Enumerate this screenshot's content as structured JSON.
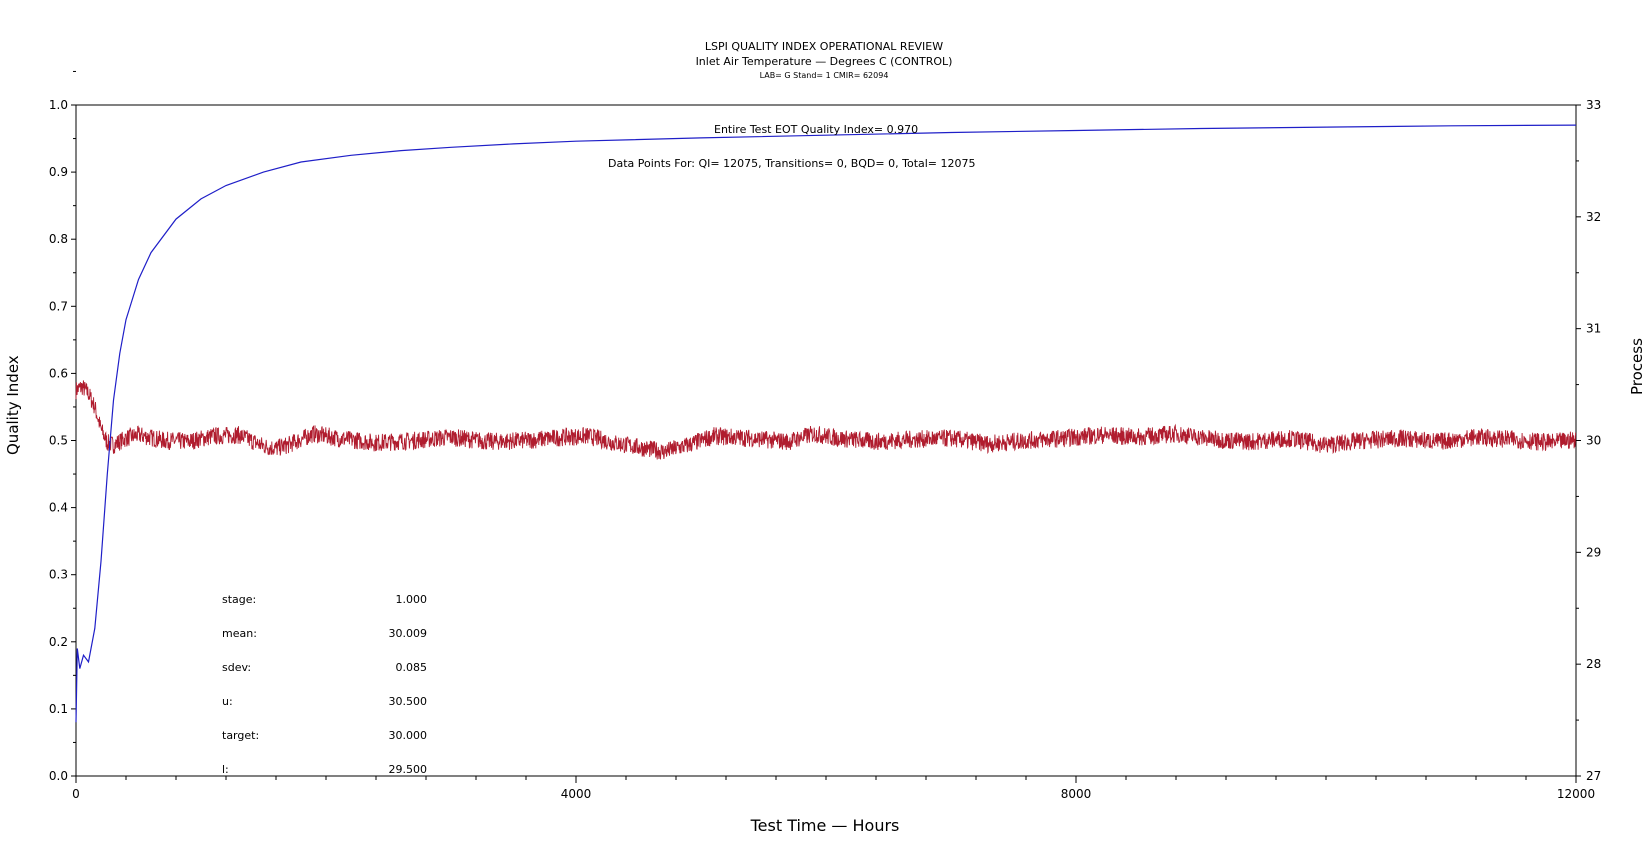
{
  "header": {
    "title": "LSPI QUALITY INDEX OPERATIONAL REVIEW",
    "subtitle": "Inlet Air Temperature — Degrees C (CONTROL)",
    "lab_line": "LAB= G Stand= 1 CMIR= 62094"
  },
  "annotations": {
    "eot_index": "Entire Test EOT Quality Index=   0.970",
    "data_points": "Data Points For: QI= 12075, Transitions=      0, BQD=      0, Total= 12075"
  },
  "stats": [
    {
      "label": "stage:",
      "value": "1.000"
    },
    {
      "label": "mean:",
      "value": "30.009"
    },
    {
      "label": "sdev:",
      "value": "0.085"
    },
    {
      "label": "u:",
      "value": "30.500"
    },
    {
      "label": "target:",
      "value": "30.000"
    },
    {
      "label": "l:",
      "value": "29.500"
    }
  ],
  "chart_data": {
    "type": "line",
    "title": "LSPI QUALITY INDEX OPERATIONAL REVIEW",
    "xlabel": "Test Time — Hours",
    "ylabel": "Quality Index",
    "y2label": "Process",
    "xlim": [
      0,
      12000
    ],
    "ylim": [
      0,
      1
    ],
    "y2lim": [
      27,
      33
    ],
    "xticks": [
      0,
      4000,
      8000,
      12000
    ],
    "xticklabels": [
      "0",
      "4000",
      "8000",
      "12000"
    ],
    "yticks": [
      0.0,
      0.1,
      0.2,
      0.3,
      0.4,
      0.5,
      0.6,
      0.7,
      0.8,
      0.9,
      1.0
    ],
    "yticklabels": [
      "0.0",
      "0.1",
      "0.2",
      "0.3",
      "0.4",
      "0.5",
      "0.6",
      "0.7",
      "0.8",
      "0.9",
      "1.0"
    ],
    "y2ticks": [
      27,
      28,
      29,
      30,
      31,
      32,
      33
    ],
    "y2ticklabels": [
      "27",
      "28",
      "29",
      "30",
      "31",
      "32",
      "33"
    ],
    "grid": false,
    "series": [
      {
        "axis": "left",
        "color": "#1f1fc8",
        "x": [
          0,
          10,
          30,
          60,
          100,
          150,
          200,
          250,
          300,
          350,
          400,
          500,
          600,
          800,
          1000,
          1200,
          1500,
          1800,
          2200,
          2600,
          3000,
          3500,
          4000,
          5000,
          6000,
          7000,
          8000,
          9000,
          10000,
          11000,
          12000
        ],
        "y": [
          0.08,
          0.19,
          0.16,
          0.18,
          0.17,
          0.22,
          0.32,
          0.45,
          0.56,
          0.63,
          0.68,
          0.74,
          0.78,
          0.83,
          0.86,
          0.88,
          0.9,
          0.915,
          0.925,
          0.932,
          0.937,
          0.942,
          0.946,
          0.951,
          0.955,
          0.959,
          0.962,
          0.965,
          0.967,
          0.969,
          0.97
        ]
      },
      {
        "axis": "right",
        "color": "#b01c2e",
        "x": [
          0,
          50,
          100,
          150,
          200,
          250,
          300,
          400,
          500,
          700,
          900,
          1100,
          1300,
          1500,
          1600,
          1700,
          1900,
          2100,
          2400,
          2700,
          3000,
          3300,
          3600,
          3900,
          4100,
          4300,
          4500,
          4700,
          4900,
          5100,
          5400,
          5700,
          5900,
          6100,
          6400,
          6700,
          7000,
          7300,
          7600,
          7900,
          8200,
          8500,
          8800,
          9100,
          9400,
          9700,
          10000,
          10300,
          10600,
          10900,
          11200,
          11500,
          11800,
          12000
        ],
        "y": [
          30.45,
          30.48,
          30.42,
          30.3,
          30.1,
          29.98,
          29.96,
          30.02,
          30.05,
          30.0,
          29.99,
          30.04,
          30.05,
          29.95,
          29.93,
          29.96,
          30.06,
          30.02,
          29.98,
          30.0,
          30.03,
          29.99,
          30.0,
          30.03,
          30.04,
          29.98,
          29.94,
          29.9,
          29.96,
          30.04,
          30.02,
          29.99,
          30.06,
          30.02,
          29.99,
          30.01,
          30.02,
          29.97,
          30.0,
          30.02,
          30.05,
          30.03,
          30.06,
          30.01,
          29.99,
          30.02,
          29.96,
          30.0,
          30.02,
          29.99,
          30.03,
          30.01,
          29.98,
          30.01
        ]
      }
    ]
  }
}
